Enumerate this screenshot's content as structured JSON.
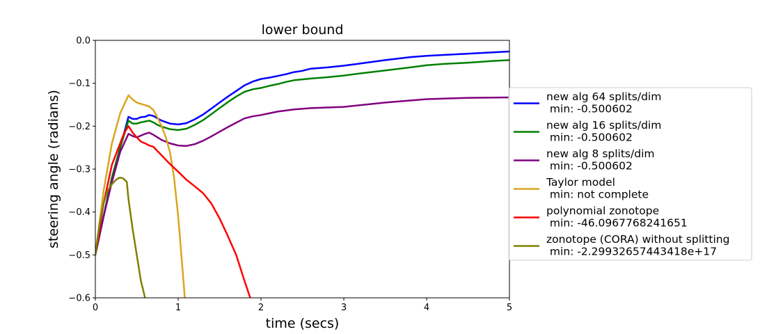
{
  "chart_data": {
    "type": "line",
    "title": "lower bound",
    "xlabel": "time (secs)",
    "ylabel": "steering angle (radians)",
    "xlim": [
      0,
      5
    ],
    "ylim": [
      -0.6,
      0.0
    ],
    "xticks": [
      "0",
      "1",
      "2",
      "3",
      "4",
      "5"
    ],
    "yticks": [
      "0.0",
      "−0.1",
      "−0.2",
      "−0.3",
      "−0.4",
      "−0.5",
      "−0.6"
    ],
    "grid": false,
    "legend_position": "right, outside",
    "series": [
      {
        "name": "new alg 64 splits/dim",
        "min_label": " min: -0.500602",
        "color": "#0000ff",
        "x": [
          0,
          0.1,
          0.2,
          0.3,
          0.4,
          0.45,
          0.5,
          0.55,
          0.6,
          0.65,
          0.7,
          0.75,
          0.8,
          0.9,
          1.0,
          1.1,
          1.2,
          1.3,
          1.4,
          1.5,
          1.6,
          1.7,
          1.8,
          1.9,
          2.0,
          2.1,
          2.2,
          2.3,
          2.4,
          2.5,
          2.6,
          2.8,
          3.0,
          3.2,
          3.5,
          3.8,
          4.0,
          4.2,
          4.5,
          4.8,
          5.0
        ],
        "y": [
          -0.5,
          -0.41,
          -0.32,
          -0.25,
          -0.178,
          -0.183,
          -0.183,
          -0.179,
          -0.178,
          -0.174,
          -0.176,
          -0.182,
          -0.187,
          -0.194,
          -0.196,
          -0.193,
          -0.184,
          -0.173,
          -0.159,
          -0.145,
          -0.131,
          -0.118,
          -0.105,
          -0.096,
          -0.09,
          -0.087,
          -0.083,
          -0.079,
          -0.074,
          -0.071,
          -0.066,
          -0.063,
          -0.059,
          -0.054,
          -0.046,
          -0.039,
          -0.036,
          -0.034,
          -0.031,
          -0.028,
          -0.026
        ]
      },
      {
        "name": "new alg 16 splits/dim",
        "min_label": " min: -0.500602",
        "color": "#008000",
        "x": [
          0,
          0.1,
          0.2,
          0.3,
          0.4,
          0.45,
          0.5,
          0.55,
          0.6,
          0.65,
          0.7,
          0.75,
          0.8,
          0.9,
          1.0,
          1.1,
          1.2,
          1.3,
          1.4,
          1.5,
          1.6,
          1.7,
          1.8,
          1.9,
          2.0,
          2.1,
          2.2,
          2.3,
          2.4,
          2.5,
          2.6,
          2.8,
          3.0,
          3.2,
          3.5,
          3.8,
          4.0,
          4.2,
          4.5,
          4.8,
          5.0
        ],
        "y": [
          -0.5,
          -0.41,
          -0.32,
          -0.25,
          -0.187,
          -0.194,
          -0.194,
          -0.191,
          -0.189,
          -0.187,
          -0.191,
          -0.197,
          -0.201,
          -0.207,
          -0.209,
          -0.206,
          -0.197,
          -0.186,
          -0.172,
          -0.158,
          -0.144,
          -0.131,
          -0.12,
          -0.114,
          -0.111,
          -0.106,
          -0.102,
          -0.097,
          -0.093,
          -0.091,
          -0.089,
          -0.086,
          -0.082,
          -0.077,
          -0.07,
          -0.063,
          -0.058,
          -0.055,
          -0.052,
          -0.048,
          -0.046
        ]
      },
      {
        "name": "new alg 8 splits/dim",
        "min_label": " min: -0.500602",
        "color": "#800080",
        "x": [
          0,
          0.1,
          0.2,
          0.3,
          0.4,
          0.45,
          0.5,
          0.55,
          0.6,
          0.65,
          0.7,
          0.8,
          0.9,
          1.0,
          1.1,
          1.2,
          1.3,
          1.4,
          1.5,
          1.6,
          1.7,
          1.8,
          1.9,
          2.0,
          2.2,
          2.4,
          2.6,
          3.0,
          3.5,
          4.0,
          4.5,
          5.0
        ],
        "y": [
          -0.5,
          -0.41,
          -0.33,
          -0.26,
          -0.218,
          -0.223,
          -0.226,
          -0.222,
          -0.218,
          -0.215,
          -0.22,
          -0.232,
          -0.24,
          -0.245,
          -0.246,
          -0.242,
          -0.234,
          -0.224,
          -0.213,
          -0.202,
          -0.192,
          -0.182,
          -0.177,
          -0.174,
          -0.166,
          -0.161,
          -0.158,
          -0.155,
          -0.145,
          -0.137,
          -0.134,
          -0.133
        ]
      },
      {
        "name": "Taylor model",
        "min_label": " min: not complete",
        "color": "#daa520",
        "x": [
          0,
          0.1,
          0.2,
          0.3,
          0.4,
          0.45,
          0.5,
          0.55,
          0.6,
          0.65,
          0.7,
          0.75,
          0.8,
          0.85,
          0.9,
          0.95,
          1.0,
          1.03,
          1.06,
          1.08
        ],
        "y": [
          -0.5,
          -0.35,
          -0.24,
          -0.17,
          -0.128,
          -0.138,
          -0.145,
          -0.148,
          -0.151,
          -0.154,
          -0.162,
          -0.18,
          -0.2,
          -0.225,
          -0.26,
          -0.32,
          -0.41,
          -0.48,
          -0.55,
          -0.6
        ]
      },
      {
        "name": "polynomial zonotope",
        "min_label": " min: -46.0967768241651",
        "color": "#ff0000",
        "x": [
          0,
          0.1,
          0.2,
          0.3,
          0.35,
          0.4,
          0.45,
          0.5,
          0.55,
          0.6,
          0.65,
          0.7,
          0.8,
          0.9,
          1.0,
          1.1,
          1.2,
          1.3,
          1.4,
          1.5,
          1.6,
          1.7,
          1.8,
          1.87
        ],
        "y": [
          -0.5,
          -0.38,
          -0.29,
          -0.24,
          -0.215,
          -0.2,
          -0.215,
          -0.226,
          -0.236,
          -0.24,
          -0.245,
          -0.248,
          -0.268,
          -0.288,
          -0.306,
          -0.325,
          -0.34,
          -0.356,
          -0.38,
          -0.415,
          -0.456,
          -0.5,
          -0.56,
          -0.6
        ]
      },
      {
        "name": "zonotope (CORA) without splitting",
        "min_label": " min: -2.29932657443418e+17",
        "color": "#808000",
        "x": [
          0,
          0.05,
          0.1,
          0.15,
          0.2,
          0.25,
          0.28,
          0.3,
          0.33,
          0.36,
          0.38,
          0.4,
          0.45,
          0.5,
          0.55,
          0.6
        ],
        "y": [
          -0.5,
          -0.43,
          -0.38,
          -0.35,
          -0.335,
          -0.325,
          -0.321,
          -0.32,
          -0.321,
          -0.326,
          -0.33,
          -0.37,
          -0.44,
          -0.5,
          -0.56,
          -0.6
        ]
      }
    ]
  }
}
